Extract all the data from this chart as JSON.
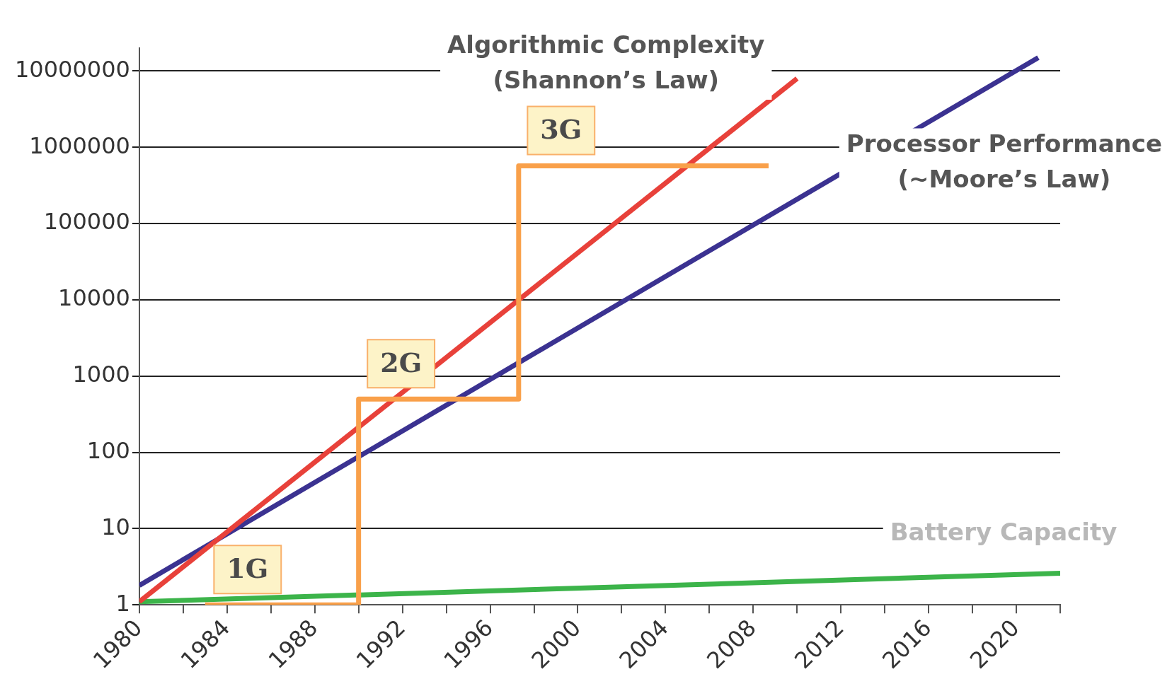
{
  "chart_data": {
    "type": "line",
    "log": "y",
    "grid": "y",
    "legend": false,
    "marker": "none",
    "xlim": [
      1980,
      2022
    ],
    "xticks": [
      1980,
      {
        "value": 1982,
        "label": null
      },
      1984,
      {
        "value": 1986,
        "label": null
      },
      1988,
      {
        "value": 1990,
        "label": null
      },
      1992,
      {
        "value": 1994,
        "label": null
      },
      1996,
      {
        "value": 1998,
        "label": null
      },
      2000,
      {
        "value": 2002,
        "label": null
      },
      2004,
      {
        "value": 2006,
        "label": null
      },
      2008,
      {
        "value": 2010,
        "label": null
      },
      2012,
      {
        "value": 2014,
        "label": null
      },
      2016,
      {
        "value": 2018,
        "label": null
      },
      2020,
      {
        "value": 2022,
        "label": null
      }
    ],
    "ylim": [
      1,
      20000000
    ],
    "yticks": [
      1,
      10,
      100,
      1000,
      10000,
      100000,
      1000000,
      10000000
    ],
    "series": [
      {
        "name": "Algorithmic Complexity\n(Shannon’s Law)",
        "color": "#e8413a",
        "x": [
          1980,
          2010
        ],
        "values": [
          1.1,
          8000000
        ]
      },
      {
        "name": "Processor Performance\n(~Moore’s Law)",
        "color": "#3b3291",
        "x": [
          1980,
          2021
        ],
        "values": [
          1.8,
          15000000
        ]
      },
      {
        "name": "Battery Capacity",
        "color": "#3cb44a",
        "x": [
          1980,
          2022
        ],
        "values": [
          1.1,
          2.6
        ]
      },
      {
        "type": "step",
        "color": "#f9a04a",
        "x": [
          1983,
          1990,
          1997.3,
          2008.7
        ],
        "values": [
          1,
          500,
          570000,
          570000
        ]
      }
    ],
    "annotations": [
      "1G",
      "2G",
      "3G"
    ]
  }
}
